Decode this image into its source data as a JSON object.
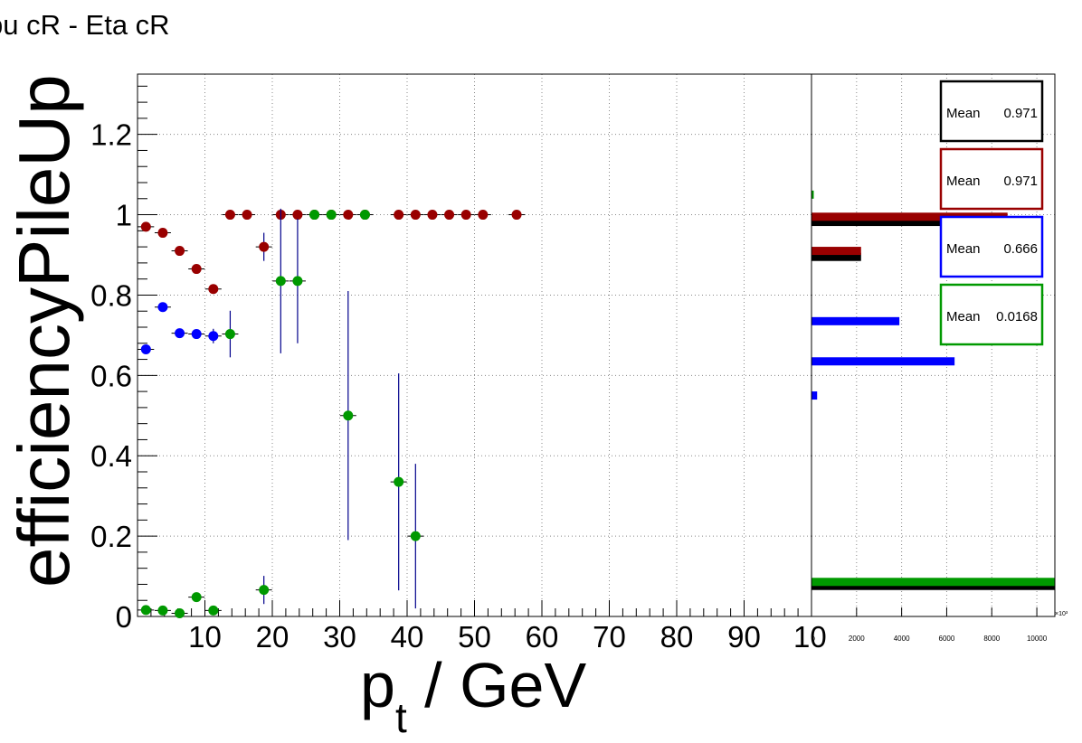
{
  "title": "pu cR - Eta cR",
  "colors": {
    "black": "#000000",
    "red": "#990000",
    "blue": "#0000ff",
    "green": "#009900",
    "errbar": "#00008b",
    "grid": "#888888"
  },
  "chart_data": [
    {
      "type": "scatter",
      "xlabel_main": "p",
      "xlabel_sub": "t",
      "xlabel_rest": " / GeV",
      "ylabel": "efficiencyPileUp",
      "xlim": [
        0,
        100
      ],
      "ylim": [
        0,
        1.35
      ],
      "xticks": [
        "10",
        "20",
        "30",
        "40",
        "50",
        "60",
        "70",
        "80",
        "90",
        "10"
      ],
      "yticks": [
        "0",
        "0.2",
        "0.4",
        "0.6",
        "0.8",
        "1",
        "1.2"
      ],
      "grid": true,
      "series": [
        {
          "color": "#990000",
          "points": [
            [
              1.25,
              0.97,
              0
            ],
            [
              3.75,
              0.955,
              0
            ],
            [
              6.25,
              0.91,
              0
            ],
            [
              8.75,
              0.865,
              0
            ],
            [
              11.25,
              0.815,
              0
            ],
            [
              13.75,
              1,
              0
            ],
            [
              16.25,
              1,
              0
            ],
            [
              18.75,
              0.92,
              0.035
            ],
            [
              21.25,
              1,
              0
            ],
            [
              23.75,
              1,
              0
            ],
            [
              26.25,
              1,
              0
            ],
            [
              28.75,
              1,
              0
            ],
            [
              31.25,
              1,
              0
            ],
            [
              33.75,
              1,
              0
            ],
            [
              38.75,
              1,
              0
            ],
            [
              41.25,
              1,
              0
            ],
            [
              43.75,
              1,
              0
            ],
            [
              46.25,
              1,
              0
            ],
            [
              48.75,
              1,
              0
            ],
            [
              51.25,
              1,
              0
            ],
            [
              56.25,
              1,
              0
            ]
          ]
        },
        {
          "color": "#0000ff",
          "points": [
            [
              1.25,
              0.665,
              0
            ],
            [
              3.75,
              0.77,
              0
            ],
            [
              6.25,
              0.705,
              0
            ],
            [
              8.75,
              0.703,
              0
            ],
            [
              11.25,
              0.698,
              0.018
            ]
          ]
        },
        {
          "color": "#009900",
          "points": [
            [
              1.25,
              0.016,
              0
            ],
            [
              3.75,
              0.015,
              0
            ],
            [
              6.25,
              0.008,
              0
            ],
            [
              8.75,
              0.048,
              0
            ],
            [
              11.25,
              0.015,
              0
            ],
            [
              13.75,
              0.703,
              0.058
            ],
            [
              18.75,
              0.066,
              0.035
            ],
            [
              21.25,
              0.835,
              0.18
            ],
            [
              23.75,
              0.835,
              0.155
            ],
            [
              26.25,
              1,
              0
            ],
            [
              28.75,
              1,
              0
            ],
            [
              33.75,
              1,
              0
            ],
            [
              31.25,
              0.5,
              0.31
            ],
            [
              38.75,
              0.335,
              0.27
            ],
            [
              41.25,
              0.2,
              0.18
            ]
          ]
        }
      ]
    },
    {
      "type": "bar",
      "orientation": "horizontal",
      "xticks": [
        "2000",
        "4000",
        "6000",
        "8000",
        "10000"
      ],
      "xlim": [
        0,
        10800
      ],
      "ylim": [
        0,
        1.35
      ],
      "exponent_label": "×10³",
      "bars": [
        {
          "color": "#000000",
          "y": 0.982,
          "value": 8600
        },
        {
          "color": "#990000",
          "y": 0.995,
          "value": 8700
        },
        {
          "color": "#000000",
          "y": 0.895,
          "value": 2200
        },
        {
          "color": "#990000",
          "y": 0.91,
          "value": 2200
        },
        {
          "color": "#0000ff",
          "y": 0.735,
          "value": 3900
        },
        {
          "color": "#0000ff",
          "y": 0.635,
          "value": 6350
        },
        {
          "color": "#0000ff",
          "y": 0.55,
          "value": 250
        },
        {
          "color": "#000000",
          "y": 0.076,
          "value": 10800
        },
        {
          "color": "#009900",
          "y": 0.086,
          "value": 10800
        },
        {
          "color": "#009900",
          "y": 1.05,
          "value": 100
        }
      ],
      "stats": [
        {
          "label": "Mean",
          "value": "0.971",
          "color": "#000000"
        },
        {
          "label": "Mean",
          "value": "0.971",
          "color": "#990000"
        },
        {
          "label": "Mean",
          "value": "0.666",
          "color": "#0000ff"
        },
        {
          "label": "Mean",
          "value": "0.0168",
          "color": "#009900"
        }
      ]
    }
  ]
}
